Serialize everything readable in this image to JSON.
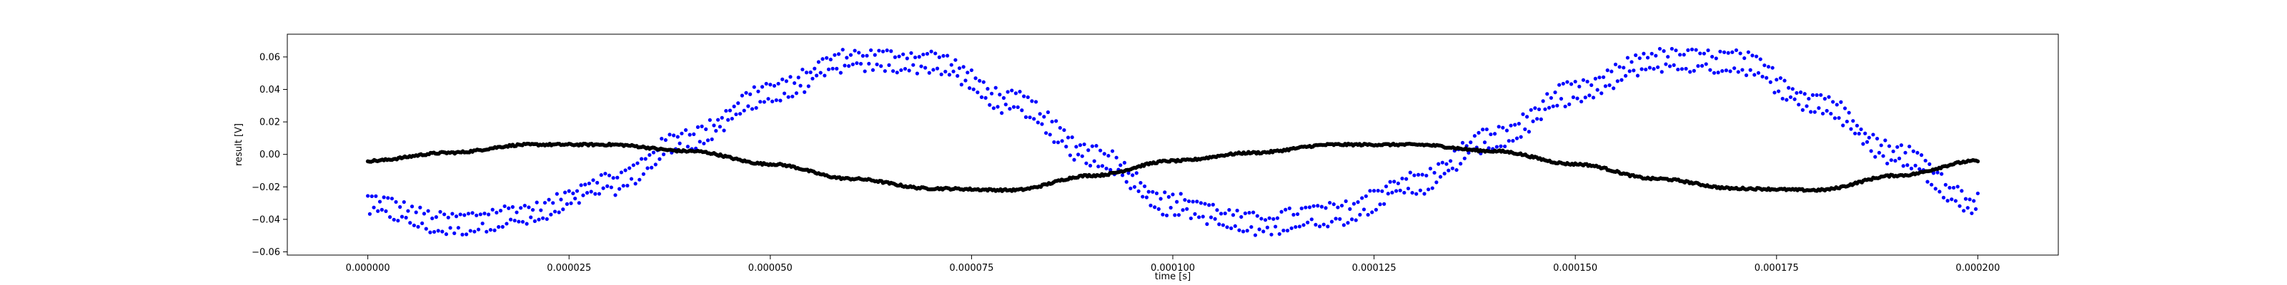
{
  "chart_data": {
    "type": "scatter",
    "title": "",
    "xlabel": "time [s]",
    "ylabel": "result [V]",
    "xlim": [
      -1e-05,
      0.00021
    ],
    "ylim": [
      -0.062,
      0.074
    ],
    "grid": false,
    "legend": "none",
    "x_ticks": [
      {
        "value": 0.0,
        "label": "0.000000"
      },
      {
        "value": 2.5e-05,
        "label": "0.000025"
      },
      {
        "value": 5e-05,
        "label": "0.000050"
      },
      {
        "value": 7.5e-05,
        "label": "0.000075"
      },
      {
        "value": 0.0001,
        "label": "0.000100"
      },
      {
        "value": 0.000125,
        "label": "0.000125"
      },
      {
        "value": 0.00015,
        "label": "0.000150"
      },
      {
        "value": 0.000175,
        "label": "0.000175"
      },
      {
        "value": 0.0002,
        "label": "0.000200"
      }
    ],
    "y_ticks": [
      {
        "value": -0.06,
        "label": "−0.06"
      },
      {
        "value": -0.04,
        "label": "−0.04"
      },
      {
        "value": -0.02,
        "label": "−0.02"
      },
      {
        "value": 0.0,
        "label": "0.00"
      },
      {
        "value": 0.02,
        "label": "0.02"
      },
      {
        "value": 0.04,
        "label": "0.04"
      },
      {
        "value": 0.06,
        "label": "0.06"
      }
    ],
    "series": [
      {
        "color": "#0000ff",
        "x_start": 0.0,
        "x_end": 0.0002,
        "x_step": 2.5e-07,
        "points": [
          [
            0.0,
            -0.031
          ],
          [
            1e-05,
            -0.043
          ],
          [
            2e-05,
            -0.037
          ],
          [
            3e-05,
            -0.018
          ],
          [
            4e-05,
            0.01
          ],
          [
            5e-05,
            0.038
          ],
          [
            6e-05,
            0.058
          ],
          [
            7e-05,
            0.057
          ],
          [
            8e-05,
            0.032
          ],
          [
            9e-05,
            0.0
          ],
          [
            0.0001,
            -0.031
          ],
          [
            0.00011,
            -0.043
          ],
          [
            0.00012,
            -0.037
          ],
          [
            0.00013,
            -0.018
          ],
          [
            0.00014,
            0.01
          ],
          [
            0.00015,
            0.038
          ],
          [
            0.00016,
            0.058
          ],
          [
            0.00017,
            0.057
          ],
          [
            0.00018,
            0.032
          ],
          [
            0.00019,
            0.0
          ],
          [
            0.0002,
            -0.031
          ]
        ]
      },
      {
        "color": "#000000",
        "x_start": 0.0,
        "x_end": 0.0002,
        "x_step": 2e-07,
        "points": [
          [
            0.0,
            -0.004
          ],
          [
            1e-05,
            0.001
          ],
          [
            2e-05,
            0.006
          ],
          [
            3e-05,
            0.006
          ],
          [
            4e-05,
            0.002
          ],
          [
            5e-05,
            -0.006
          ],
          [
            6e-05,
            -0.015
          ],
          [
            7e-05,
            -0.021
          ],
          [
            8e-05,
            -0.022
          ],
          [
            9e-05,
            -0.013
          ],
          [
            0.0001,
            -0.004
          ],
          [
            0.00011,
            0.001
          ],
          [
            0.00012,
            0.006
          ],
          [
            0.00013,
            0.006
          ],
          [
            0.00014,
            0.002
          ],
          [
            0.00015,
            -0.006
          ],
          [
            0.00016,
            -0.015
          ],
          [
            0.00017,
            -0.021
          ],
          [
            0.00018,
            -0.022
          ],
          [
            0.00019,
            -0.013
          ],
          [
            0.0002,
            -0.004
          ]
        ]
      }
    ]
  }
}
